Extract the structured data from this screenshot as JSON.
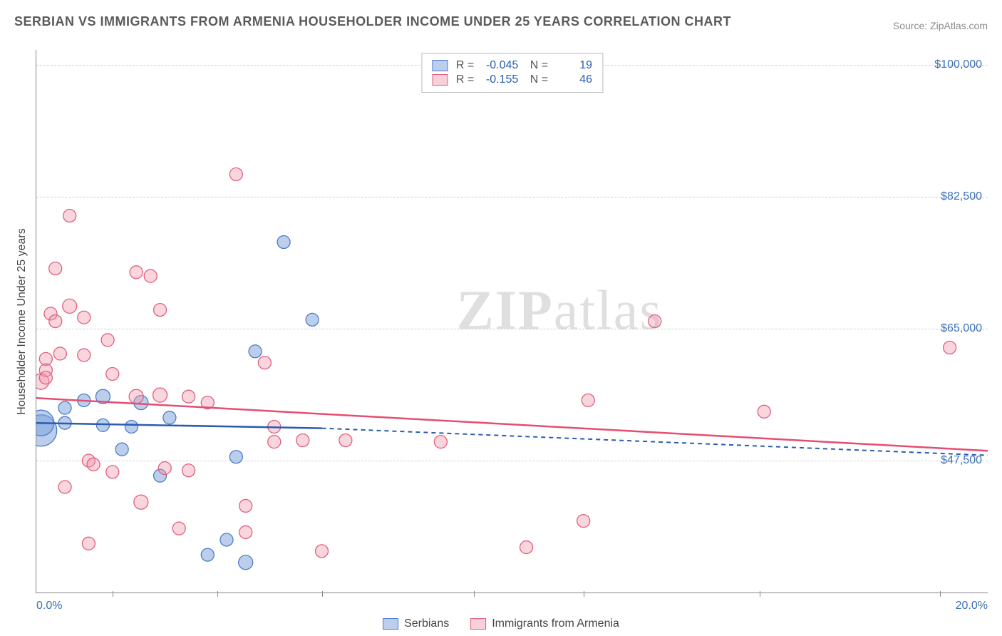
{
  "title": "SERBIAN VS IMMIGRANTS FROM ARMENIA HOUSEHOLDER INCOME UNDER 25 YEARS CORRELATION CHART",
  "source": "Source: ZipAtlas.com",
  "ylabel": "Householder Income Under 25 years",
  "watermark_a": "ZIP",
  "watermark_b": "atlas",
  "chart": {
    "type": "scatter",
    "xlim": [
      0,
      20
    ],
    "ylim": [
      30000,
      102000
    ],
    "yticks": [
      {
        "v": 47500,
        "label": "$47,500"
      },
      {
        "v": 65000,
        "label": "$65,000"
      },
      {
        "v": 82500,
        "label": "$82,500"
      },
      {
        "v": 100000,
        "label": "$100,000"
      }
    ],
    "xticks_major": [
      0,
      20
    ],
    "xticks_minor": [
      1.6,
      3.8,
      6.0,
      9.2,
      11.5,
      15.2,
      19.0
    ],
    "xtick_labels": {
      "0": "0.0%",
      "20": "20.0%"
    },
    "colors": {
      "blue_fill": "rgba(120,160,220,0.5)",
      "blue_stroke": "#4d7bc8",
      "pink_fill": "rgba(240,150,170,0.40)",
      "pink_stroke": "#e0607e",
      "trend_blue": "#2a5db0",
      "trend_pink": "#e54d73",
      "grid": "#d0d0d0",
      "text_axis": "#3b6fb8"
    },
    "series": [
      {
        "name": "Serbians",
        "color_key": "blue",
        "r_value": "-0.045",
        "n_value": "19",
        "trend": {
          "x1": 0,
          "y1": 52500,
          "x2_solid": 6.0,
          "y2_solid": 51800,
          "x2_dash": 20,
          "y2_dash": 48200
        },
        "points": [
          {
            "x": 0.1,
            "y": 51500,
            "r": 22
          },
          {
            "x": 0.1,
            "y": 52500,
            "r": 18
          },
          {
            "x": 0.6,
            "y": 54500,
            "r": 9
          },
          {
            "x": 0.6,
            "y": 52500,
            "r": 9
          },
          {
            "x": 1.0,
            "y": 55500,
            "r": 9
          },
          {
            "x": 1.4,
            "y": 56000,
            "r": 10
          },
          {
            "x": 1.4,
            "y": 52200,
            "r": 9
          },
          {
            "x": 1.8,
            "y": 49000,
            "r": 9
          },
          {
            "x": 2.0,
            "y": 52000,
            "r": 9
          },
          {
            "x": 2.2,
            "y": 55200,
            "r": 10
          },
          {
            "x": 2.6,
            "y": 45500,
            "r": 9
          },
          {
            "x": 4.0,
            "y": 37000,
            "r": 9
          },
          {
            "x": 3.6,
            "y": 35000,
            "r": 9
          },
          {
            "x": 4.2,
            "y": 48000,
            "r": 9
          },
          {
            "x": 4.4,
            "y": 34000,
            "r": 10
          },
          {
            "x": 4.6,
            "y": 62000,
            "r": 9
          },
          {
            "x": 5.2,
            "y": 76500,
            "r": 9
          },
          {
            "x": 5.8,
            "y": 66200,
            "r": 9
          },
          {
            "x": 2.8,
            "y": 53200,
            "r": 9
          }
        ]
      },
      {
        "name": "Immigrants from Armenia",
        "color_key": "pink",
        "r_value": "-0.155",
        "n_value": "46",
        "trend": {
          "x1": 0,
          "y1": 55800,
          "x2_solid": 20,
          "y2_solid": 48800
        },
        "points": [
          {
            "x": 0.1,
            "y": 58000,
            "r": 11
          },
          {
            "x": 0.2,
            "y": 59500,
            "r": 9
          },
          {
            "x": 0.2,
            "y": 58500,
            "r": 9
          },
          {
            "x": 0.2,
            "y": 61000,
            "r": 9
          },
          {
            "x": 0.3,
            "y": 67000,
            "r": 9
          },
          {
            "x": 0.4,
            "y": 66000,
            "r": 9
          },
          {
            "x": 0.4,
            "y": 73000,
            "r": 9
          },
          {
            "x": 0.5,
            "y": 61700,
            "r": 9
          },
          {
            "x": 0.6,
            "y": 44000,
            "r": 9
          },
          {
            "x": 0.7,
            "y": 80000,
            "r": 9
          },
          {
            "x": 0.7,
            "y": 68000,
            "r": 10
          },
          {
            "x": 1.0,
            "y": 66500,
            "r": 9
          },
          {
            "x": 1.0,
            "y": 61500,
            "r": 9
          },
          {
            "x": 1.1,
            "y": 47500,
            "r": 9
          },
          {
            "x": 1.2,
            "y": 47000,
            "r": 9
          },
          {
            "x": 1.1,
            "y": 36500,
            "r": 9
          },
          {
            "x": 1.5,
            "y": 63500,
            "r": 9
          },
          {
            "x": 1.6,
            "y": 46000,
            "r": 9
          },
          {
            "x": 1.6,
            "y": 59000,
            "r": 9
          },
          {
            "x": 2.1,
            "y": 56000,
            "r": 10
          },
          {
            "x": 2.1,
            "y": 72500,
            "r": 9
          },
          {
            "x": 2.2,
            "y": 42000,
            "r": 10
          },
          {
            "x": 2.4,
            "y": 72000,
            "r": 9
          },
          {
            "x": 2.6,
            "y": 67500,
            "r": 9
          },
          {
            "x": 2.6,
            "y": 56200,
            "r": 10
          },
          {
            "x": 2.7,
            "y": 46500,
            "r": 9
          },
          {
            "x": 3.0,
            "y": 38500,
            "r": 9
          },
          {
            "x": 3.2,
            "y": 46200,
            "r": 9
          },
          {
            "x": 3.2,
            "y": 56000,
            "r": 9
          },
          {
            "x": 3.6,
            "y": 55200,
            "r": 9
          },
          {
            "x": 4.2,
            "y": 85500,
            "r": 9
          },
          {
            "x": 4.4,
            "y": 41500,
            "r": 9
          },
          {
            "x": 4.8,
            "y": 60500,
            "r": 9
          },
          {
            "x": 5.0,
            "y": 52000,
            "r": 9
          },
          {
            "x": 5.0,
            "y": 50000,
            "r": 9
          },
          {
            "x": 5.6,
            "y": 50200,
            "r": 9
          },
          {
            "x": 6.0,
            "y": 35500,
            "r": 9
          },
          {
            "x": 6.5,
            "y": 50200,
            "r": 9
          },
          {
            "x": 8.5,
            "y": 50000,
            "r": 9
          },
          {
            "x": 10.3,
            "y": 36000,
            "r": 9
          },
          {
            "x": 11.5,
            "y": 39500,
            "r": 9
          },
          {
            "x": 11.6,
            "y": 55500,
            "r": 9
          },
          {
            "x": 13.0,
            "y": 66000,
            "r": 9
          },
          {
            "x": 15.3,
            "y": 54000,
            "r": 9
          },
          {
            "x": 19.2,
            "y": 62500,
            "r": 9
          },
          {
            "x": 4.4,
            "y": 38000,
            "r": 9
          }
        ]
      }
    ]
  }
}
